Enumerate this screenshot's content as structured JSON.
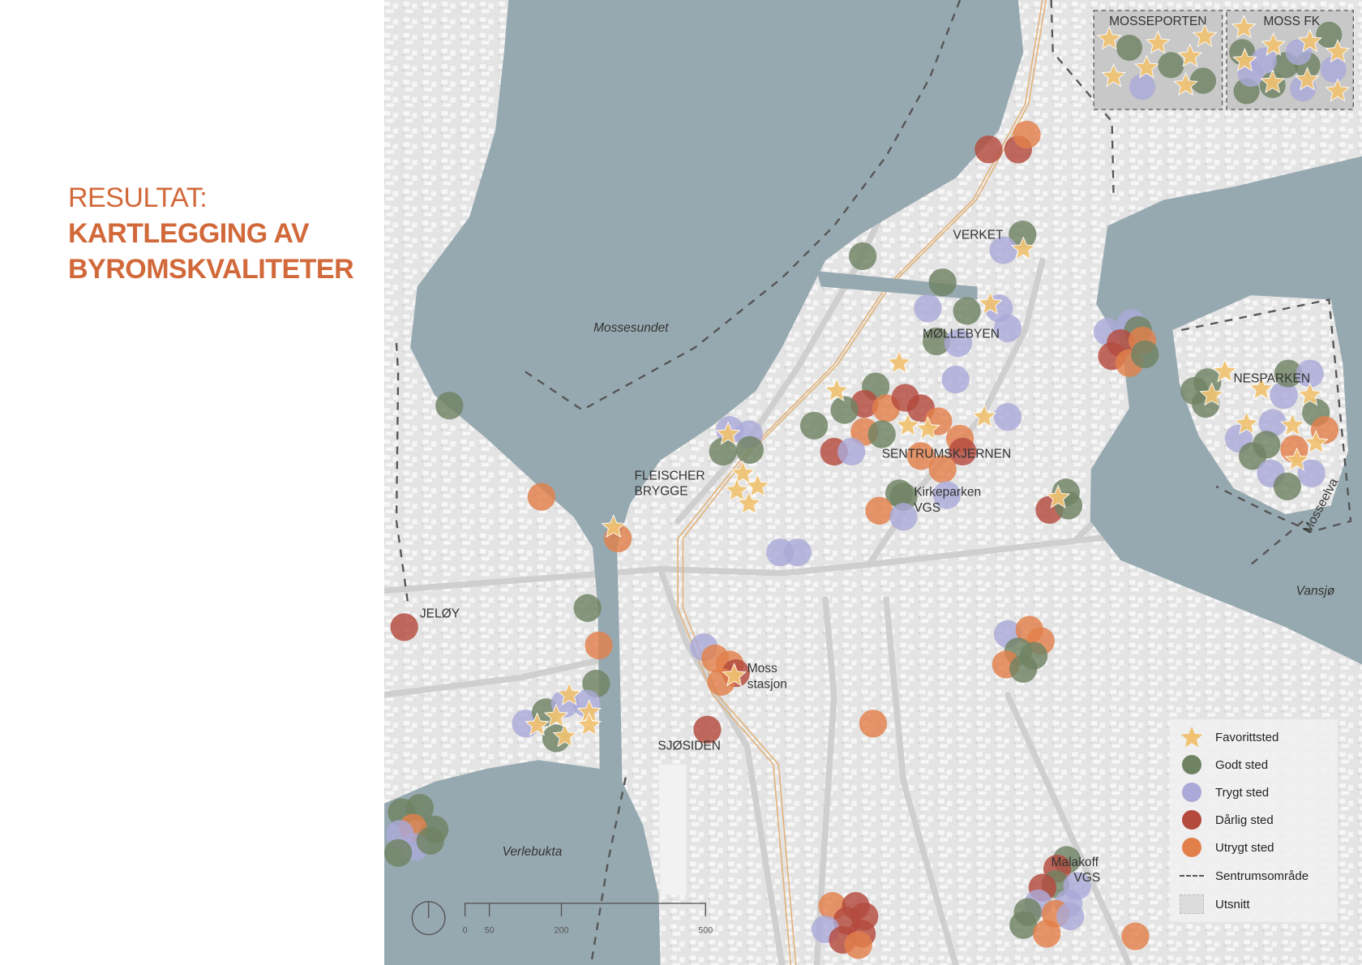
{
  "title": {
    "line1": "RESULTAT:",
    "line2": "KARTLEGGING AV",
    "line3": "BYROMSKVALITETER"
  },
  "colors": {
    "title": "#d2693a",
    "water": "#97a9b0",
    "land": "#e4e4e4",
    "favorittsted": "#f0c272",
    "godt_sted": "#6f8363",
    "trygt_sted": "#aba9d8",
    "darlig_sted": "#b44a3e",
    "utrygt_sted": "#e2804b"
  },
  "places": {
    "mossesundet": "Mossesundet",
    "verket": "VERKET",
    "mollebyen": "MØLLEBYEN",
    "sentrumskjernen": "SENTRUMSKJERNEN",
    "nesparken": "NESPARKEN",
    "fleischer1": "FLEISCHER",
    "fleischer2": "BRYGGE",
    "kirkeparken1": "Kirkeparken",
    "kirkeparken2": "VGS",
    "jeloy": "JELØY",
    "stasjon1": "Moss",
    "stasjon2": "stasjon",
    "sjosiden": "SJØSIDEN",
    "verlebukta": "Verlebukta",
    "malakoff1": "Malakoff",
    "malakoff2": "VGS",
    "vansjo": "Vansjø",
    "mosseelva": "Mosseelva"
  },
  "insets": [
    {
      "label": "MOSSEPORTEN"
    },
    {
      "label": "MOSS FK"
    }
  ],
  "scale_bar": {
    "ticks": [
      "0",
      "50",
      "200",
      "500"
    ]
  },
  "legend": {
    "items": [
      {
        "label": "Favorittsted",
        "icon": "star-icon"
      },
      {
        "label": "Godt sted",
        "icon": "circle-icon"
      },
      {
        "label": "Trygt sted",
        "icon": "circle-icon"
      },
      {
        "label": "Dårlig sted",
        "icon": "circle-icon"
      },
      {
        "label": "Utrygt sted",
        "icon": "circle-icon"
      },
      {
        "label": "Sentrumsområde",
        "icon": "dashed-line-icon"
      },
      {
        "label": "Utsnitt",
        "icon": "box-icon"
      }
    ]
  }
}
